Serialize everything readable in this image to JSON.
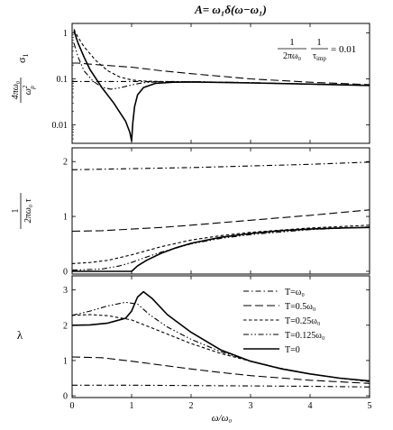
{
  "chart_data": {
    "type": "line",
    "title": "A= ω₁δ(ω−ω₁)",
    "annotation": {
      "numer_left": "1",
      "denom_left": "2πω₀",
      "numer_right": "1",
      "denom_right": "τ",
      "denom_right_sub": "imp",
      "equals": "= 0.01"
    },
    "legend": {
      "placement": "right, bottom panel",
      "entries": [
        "T=ω₀",
        "T=0.5ω₀",
        "T=0.25ω₀",
        "T=0.125ω₀",
        "T=0"
      ]
    },
    "xlabel": "ω/ω₀",
    "xlim": [
      0,
      5
    ],
    "x_ticks": [
      "0",
      "1",
      "2",
      "3",
      "4",
      "5"
    ],
    "series_styles": {
      "T=ω₀": "dash-dot",
      "T=0.5ω₀": "long-dash",
      "T=0.25ω₀": "short-dash",
      "T=0.125ω₀": "dash-dot-dot",
      "T=0": "solid"
    },
    "panels": [
      {
        "id": "sigma",
        "ylabel": {
          "numer": "4πω₀",
          "denom": "ω",
          "denom_sup": "2",
          "denom_sub": "p",
          "symbol": "σ",
          "symbol_sub": "1"
        },
        "scale": "log",
        "ylim": [
          0.004,
          1.6
        ],
        "y_ticks": [
          1,
          0.1,
          0.01
        ],
        "y_tick_labels": [
          "1",
          "0.1",
          "0.01"
        ],
        "series": [
          {
            "name": "T=ω₀",
            "x": [
              0,
              0.5,
              1,
              2,
              3,
              4,
              5
            ],
            "y": [
              0.088,
              0.088,
              0.088,
              0.086,
              0.082,
              0.077,
              0.072
            ]
          },
          {
            "name": "T=0.5ω₀",
            "x": [
              0,
              0.1,
              0.5,
              1,
              1.5,
              2,
              3,
              4,
              5
            ],
            "y": [
              0.22,
              0.22,
              0.2,
              0.18,
              0.15,
              0.13,
              0.1,
              0.085,
              0.075
            ]
          },
          {
            "name": "T=0.25ω₀",
            "x": [
              0.03,
              0.1,
              0.2,
              0.4,
              0.6,
              0.8,
              1.0,
              1.2,
              1.5,
              2,
              3,
              4,
              5
            ],
            "y": [
              1.2,
              0.8,
              0.5,
              0.25,
              0.15,
              0.11,
              0.095,
              0.09,
              0.088,
              0.087,
              0.083,
              0.077,
              0.072
            ]
          },
          {
            "name": "T=0.125ω₀",
            "x": [
              0.03,
              0.1,
              0.2,
              0.35,
              0.5,
              0.65,
              0.8,
              1.0,
              1.2,
              1.5,
              2,
              3,
              4,
              5
            ],
            "y": [
              0.6,
              0.3,
              0.15,
              0.09,
              0.066,
              0.06,
              0.064,
              0.074,
              0.083,
              0.087,
              0.087,
              0.083,
              0.077,
              0.072
            ]
          },
          {
            "name": "T=0",
            "x": [
              0.03,
              0.1,
              0.2,
              0.3,
              0.5,
              0.7,
              0.9,
              0.97,
              1.0,
              1.02,
              1.05,
              1.1,
              1.2,
              1.4,
              1.7,
              2,
              3,
              4,
              5
            ],
            "y": [
              1.1,
              0.6,
              0.3,
              0.16,
              0.065,
              0.03,
              0.012,
              0.007,
              0.0045,
              0.011,
              0.025,
              0.045,
              0.065,
              0.08,
              0.085,
              0.086,
              0.082,
              0.077,
              0.072
            ]
          }
        ]
      },
      {
        "id": "tau",
        "ylabel": {
          "numer": "1",
          "denom": "2πω₀ τ"
        },
        "scale": "linear",
        "ylim": [
          -0.05,
          2.25
        ],
        "y_ticks": [
          0,
          1,
          2
        ],
        "y_tick_labels": [
          "0",
          "1",
          "2"
        ],
        "series": [
          {
            "name": "T=ω₀",
            "x": [
              0,
              1,
              2,
              3,
              4,
              5
            ],
            "y": [
              1.85,
              1.87,
              1.89,
              1.92,
              1.95,
              1.99
            ]
          },
          {
            "name": "T=0.5ω₀",
            "x": [
              0,
              0.5,
              1,
              1.5,
              2,
              3,
              4,
              5
            ],
            "y": [
              0.73,
              0.74,
              0.77,
              0.8,
              0.84,
              0.93,
              1.02,
              1.12
            ]
          },
          {
            "name": "T=0.25ω₀",
            "x": [
              0,
              0.3,
              0.6,
              1,
              1.5,
              2,
              2.5,
              3,
              4,
              5
            ],
            "y": [
              0.14,
              0.16,
              0.2,
              0.3,
              0.45,
              0.57,
              0.65,
              0.71,
              0.79,
              0.84
            ]
          },
          {
            "name": "T=0.125ω₀",
            "x": [
              0,
              0.5,
              0.8,
              1,
              1.2,
              1.5,
              2,
              2.5,
              3,
              4,
              5
            ],
            "y": [
              0.02,
              0.04,
              0.1,
              0.16,
              0.24,
              0.35,
              0.5,
              0.6,
              0.67,
              0.76,
              0.81
            ]
          },
          {
            "name": "T=0",
            "x": [
              0,
              1.0,
              1.1,
              1.25,
              1.5,
              1.75,
              2,
              2.5,
              3,
              3.5,
              4,
              4.5,
              5
            ],
            "y": [
              0,
              0,
              0.1,
              0.2,
              0.33,
              0.43,
              0.51,
              0.62,
              0.69,
              0.74,
              0.77,
              0.79,
              0.8
            ]
          }
        ]
      },
      {
        "id": "lambda",
        "ylabel": {
          "symbol": "λ"
        },
        "scale": "linear",
        "ylim": [
          -0.05,
          3.4
        ],
        "y_ticks": [
          0,
          1,
          2,
          3
        ],
        "y_tick_labels": [
          "0",
          "1",
          "2",
          "3"
        ],
        "series": [
          {
            "name": "T=ω₀",
            "x": [
              0,
              1,
              2,
              3,
              4,
              5
            ],
            "y": [
              0.3,
              0.3,
              0.29,
              0.28,
              0.27,
              0.25
            ]
          },
          {
            "name": "T=0.5ω₀",
            "x": [
              0,
              0.5,
              1,
              1.5,
              2,
              2.5,
              3,
              4,
              5
            ],
            "y": [
              1.1,
              1.08,
              0.98,
              0.87,
              0.76,
              0.66,
              0.57,
              0.44,
              0.35
            ]
          },
          {
            "name": "T=0.25ω₀",
            "x": [
              0,
              0.3,
              0.6,
              1,
              1.3,
              1.6,
              2,
              2.5,
              3,
              3.5,
              4,
              4.5,
              5
            ],
            "y": [
              2.28,
              2.3,
              2.27,
              2.15,
              1.95,
              1.75,
              1.48,
              1.2,
              0.98,
              0.78,
              0.62,
              0.5,
              0.4
            ]
          },
          {
            "name": "T=0.125ω₀",
            "x": [
              0,
              0.3,
              0.6,
              0.9,
              1.1,
              1.3,
              1.6,
              2,
              2.5,
              3,
              3.5,
              4,
              4.5,
              5
            ],
            "y": [
              2.28,
              2.4,
              2.55,
              2.65,
              2.6,
              2.3,
              1.95,
              1.6,
              1.25,
              0.98,
              0.78,
              0.62,
              0.5,
              0.42
            ]
          },
          {
            "name": "T=0",
            "x": [
              0,
              0.3,
              0.6,
              0.9,
              1.0,
              1.1,
              1.2,
              1.35,
              1.6,
              2,
              2.5,
              3,
              3.5,
              4,
              4.5,
              5
            ],
            "y": [
              2.0,
              2.01,
              2.06,
              2.2,
              2.4,
              2.8,
              2.95,
              2.75,
              2.3,
              1.8,
              1.3,
              0.98,
              0.77,
              0.62,
              0.5,
              0.42
            ]
          }
        ]
      }
    ]
  }
}
